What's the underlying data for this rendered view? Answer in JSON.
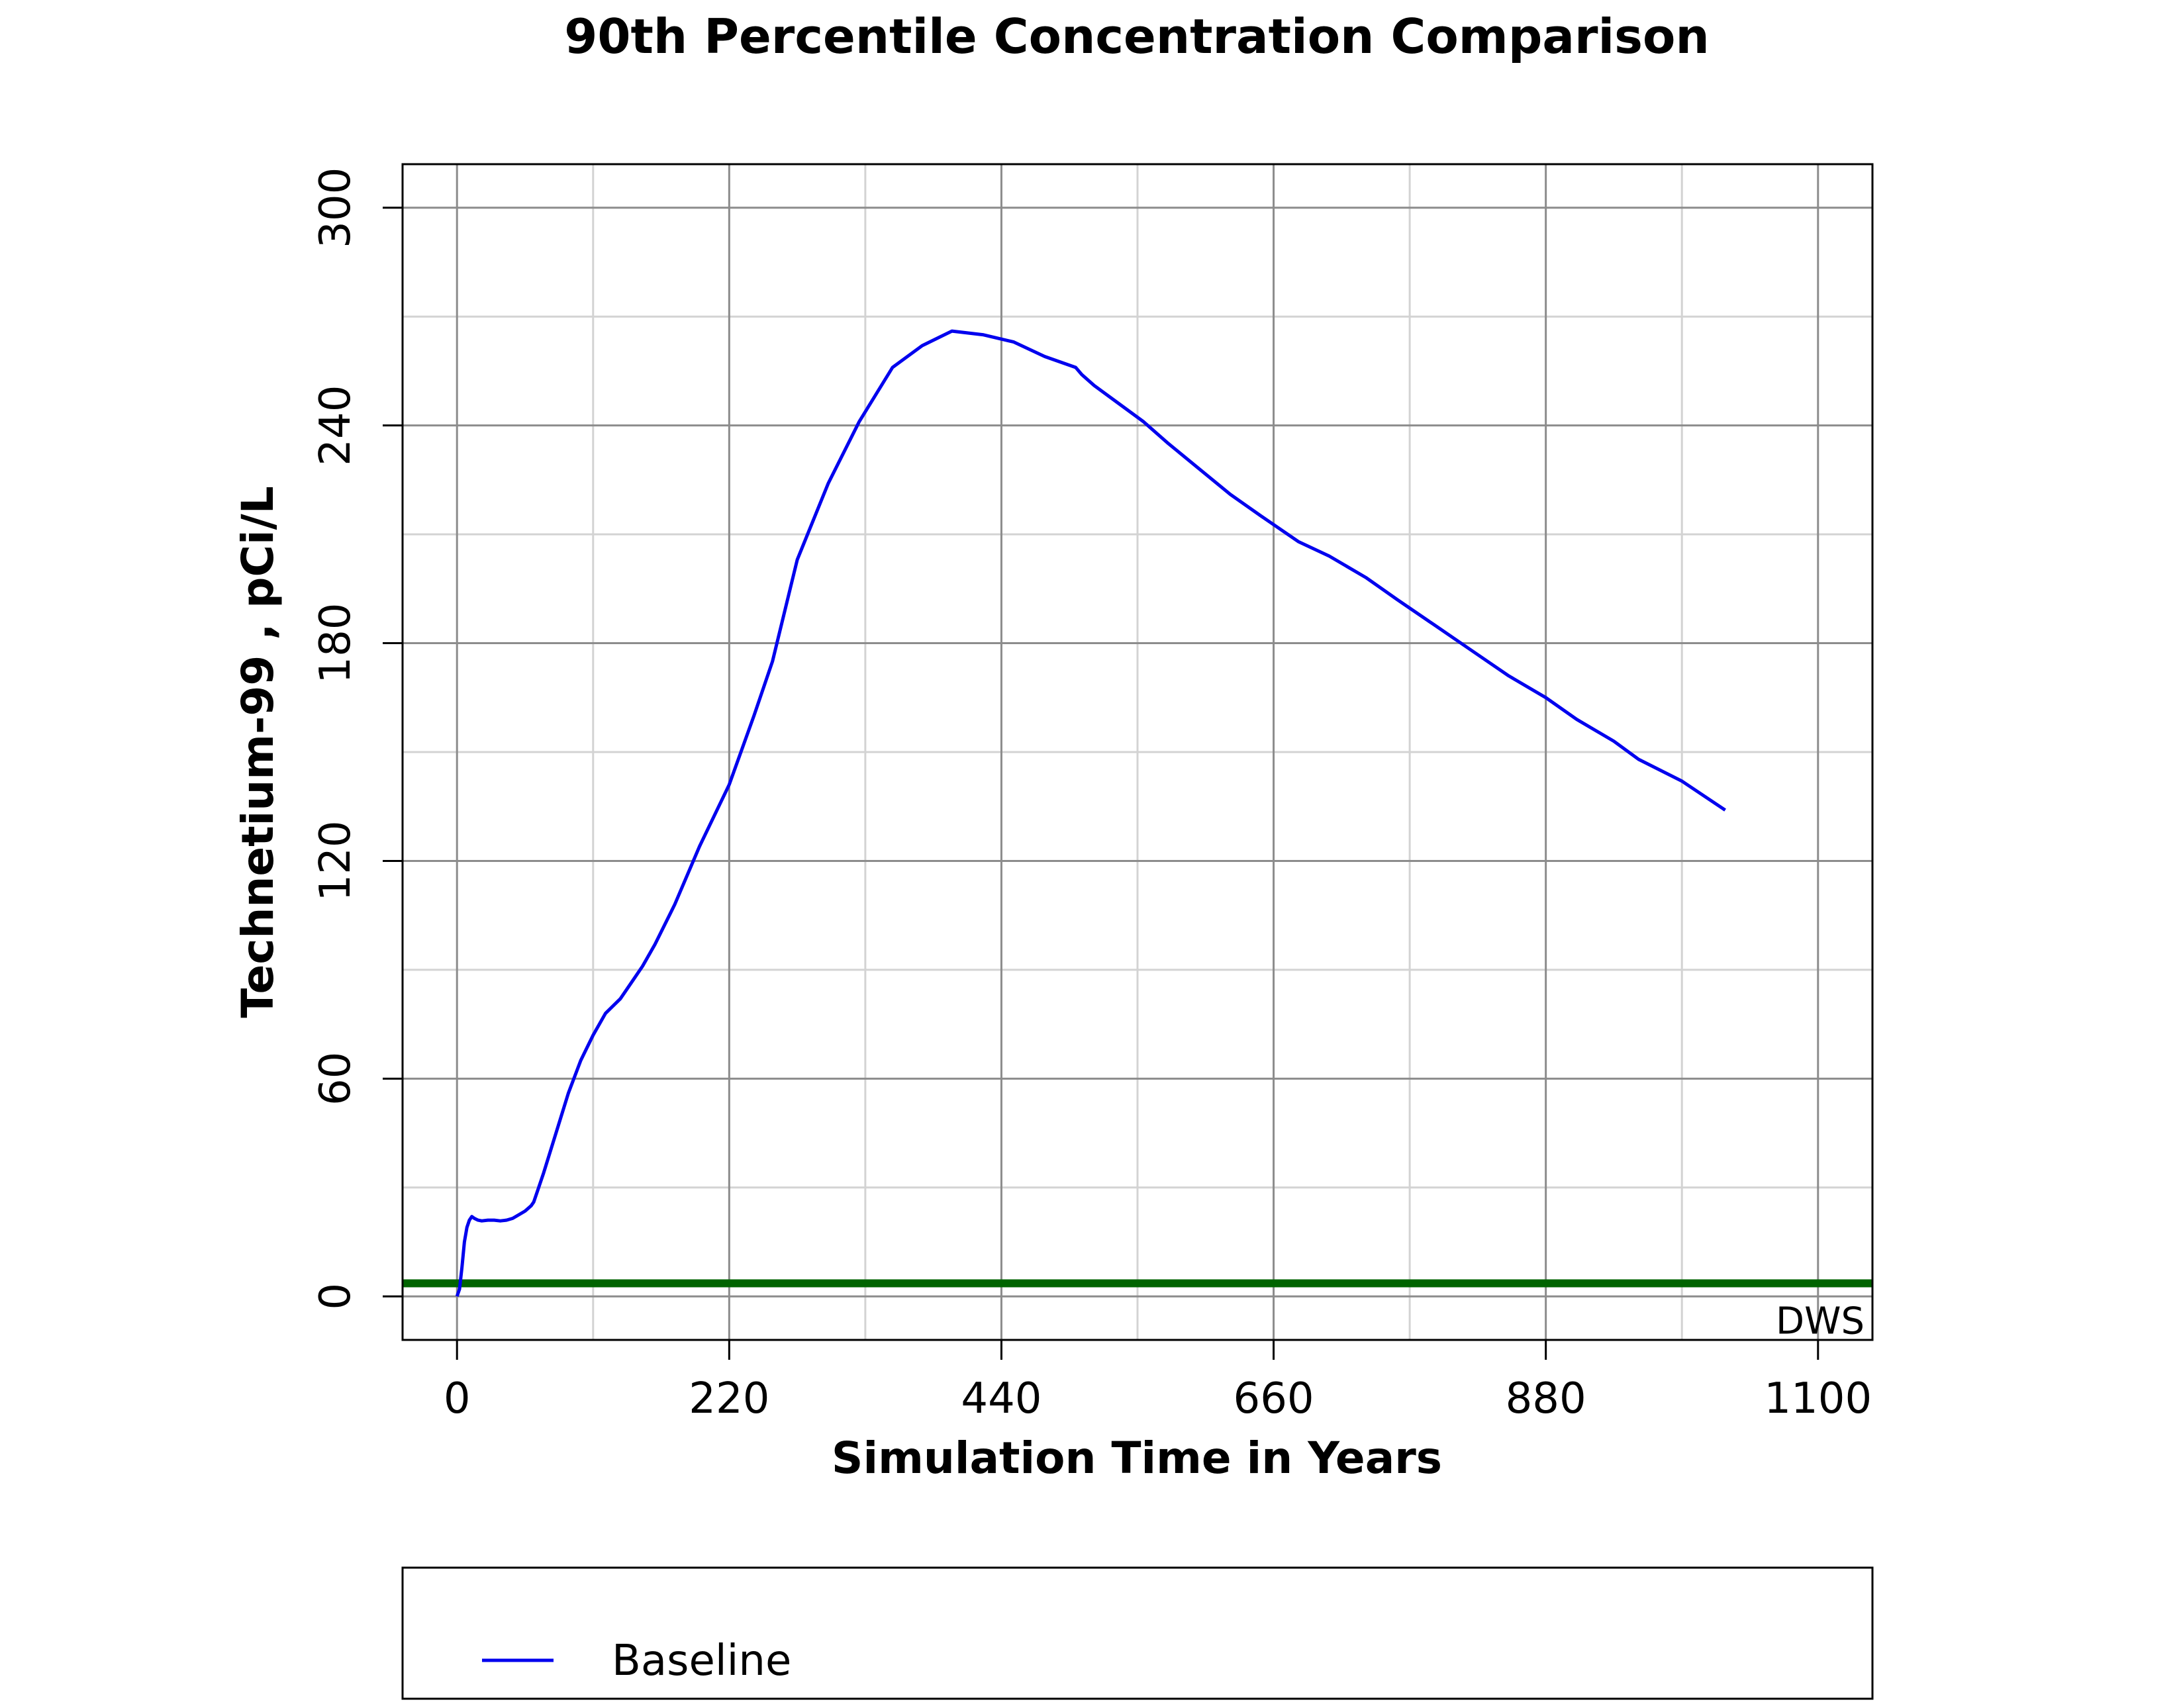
{
  "chart_data": {
    "type": "line",
    "title": "90th Percentile Concentration Comparison",
    "xlabel": "Simulation Time in Years",
    "ylabel": "Technetium-99 , pCi/L",
    "xlim": [
      -44,
      1144
    ],
    "ylim": [
      -12,
      312
    ],
    "x_ticks": [
      0,
      220,
      440,
      660,
      880,
      1100
    ],
    "x_tick_labels": [
      "0",
      "220",
      "440",
      "660",
      "880",
      "1100"
    ],
    "y_ticks": [
      0,
      60,
      120,
      180,
      240,
      300
    ],
    "y_tick_labels": [
      "0",
      "60",
      "120",
      "180",
      "240",
      "300"
    ],
    "x_major_grid": [
      0,
      220,
      440,
      660,
      880,
      1100
    ],
    "x_minor_grid": [
      110,
      330,
      550,
      770,
      990
    ],
    "y_major_grid": [
      0,
      60,
      120,
      180,
      240,
      300
    ],
    "y_minor_grid": [
      30,
      90,
      150,
      210,
      270
    ],
    "grid": true,
    "legend_position": "bottom",
    "reference_line": {
      "label": "DWS",
      "y": 3.6,
      "color": "#006400"
    },
    "series": [
      {
        "name": "Baseline",
        "color": "#0000ee",
        "x": [
          0,
          2,
          4,
          6,
          8,
          10,
          12,
          14,
          17,
          20,
          25,
          30,
          35,
          40,
          45,
          50,
          55,
          60,
          62,
          65,
          70,
          80,
          90,
          100,
          110,
          120,
          132,
          142,
          150,
          160,
          176,
          196,
          220,
          240,
          255,
          275,
          300,
          325,
          352,
          376,
          400,
          425,
          450,
          475,
          500,
          505,
          515,
          535,
          555,
          575,
          600,
          625,
          650,
          680,
          705,
          735,
          760,
          790,
          820,
          850,
          880,
          905,
          935,
          955,
          990,
          1025
        ],
        "y": [
          0,
          2,
          8,
          15,
          19,
          21,
          22,
          21.5,
          21,
          20.8,
          21,
          21,
          20.8,
          21,
          21.5,
          22.5,
          23.5,
          25,
          26,
          29,
          34,
          45,
          56,
          65,
          72,
          78,
          82,
          87,
          91,
          97,
          108,
          124,
          141,
          160,
          175,
          203,
          224,
          241,
          256,
          262,
          266,
          265,
          263,
          259,
          256,
          254,
          251,
          246,
          241,
          235,
          228,
          221,
          215,
          208,
          204,
          198,
          192,
          185,
          178,
          171,
          165,
          159,
          153,
          148,
          142,
          134
        ]
      }
    ]
  }
}
